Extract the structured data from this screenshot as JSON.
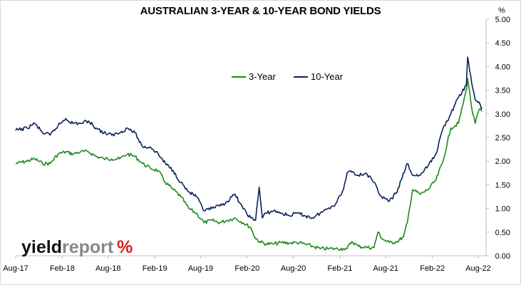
{
  "chart_data": {
    "type": "line",
    "title": "AUSTRALIAN 3-YEAR & 10-YEAR BOND YIELDS",
    "ylabel": "%",
    "ylim": [
      0,
      5
    ],
    "y_ticks": [
      "0.00",
      "0.50",
      "1.00",
      "1.50",
      "2.00",
      "2.50",
      "3.00",
      "3.50",
      "4.00",
      "4.50",
      "5.00"
    ],
    "xlim": [
      "2017-08-01",
      "2022-09-01"
    ],
    "x_ticks": [
      {
        "label": "Aug-17",
        "date": "2017-08-01"
      },
      {
        "label": "Feb-18",
        "date": "2018-02-01"
      },
      {
        "label": "Aug-18",
        "date": "2018-08-01"
      },
      {
        "label": "Feb-19",
        "date": "2019-02-01"
      },
      {
        "label": "Aug-19",
        "date": "2019-08-01"
      },
      {
        "label": "Feb-20",
        "date": "2020-02-01"
      },
      {
        "label": "Aug-20",
        "date": "2020-08-01"
      },
      {
        "label": "Feb-21",
        "date": "2021-02-01"
      },
      {
        "label": "Aug-21",
        "date": "2021-08-01"
      },
      {
        "label": "Feb-22",
        "date": "2022-02-01"
      },
      {
        "label": "Aug-22",
        "date": "2022-08-01"
      }
    ],
    "y_axis_side": "right",
    "grid": false,
    "legend": "center-top",
    "series": [
      {
        "name": "3-Year",
        "color": "#1a8a1a",
        "points": [
          [
            "2017-08-01",
            1.95
          ],
          [
            "2017-09-15",
            2.0
          ],
          [
            "2017-10-15",
            2.05
          ],
          [
            "2017-11-15",
            1.95
          ],
          [
            "2017-12-15",
            1.95
          ],
          [
            "2018-01-15",
            2.15
          ],
          [
            "2018-02-15",
            2.2
          ],
          [
            "2018-03-15",
            2.15
          ],
          [
            "2018-04-15",
            2.2
          ],
          [
            "2018-05-15",
            2.2
          ],
          [
            "2018-06-15",
            2.1
          ],
          [
            "2018-07-15",
            2.05
          ],
          [
            "2018-08-15",
            2.05
          ],
          [
            "2018-09-15",
            2.05
          ],
          [
            "2018-10-15",
            2.15
          ],
          [
            "2018-11-15",
            2.1
          ],
          [
            "2018-12-15",
            1.95
          ],
          [
            "2019-01-15",
            1.85
          ],
          [
            "2019-02-15",
            1.8
          ],
          [
            "2019-03-15",
            1.55
          ],
          [
            "2019-04-15",
            1.4
          ],
          [
            "2019-05-15",
            1.25
          ],
          [
            "2019-06-15",
            1.0
          ],
          [
            "2019-07-15",
            0.9
          ],
          [
            "2019-08-15",
            0.7
          ],
          [
            "2019-09-15",
            0.75
          ],
          [
            "2019-10-15",
            0.7
          ],
          [
            "2019-11-15",
            0.75
          ],
          [
            "2019-12-15",
            0.8
          ],
          [
            "2020-01-15",
            0.7
          ],
          [
            "2020-02-15",
            0.6
          ],
          [
            "2020-03-01",
            0.4
          ],
          [
            "2020-03-20",
            0.3
          ],
          [
            "2020-04-15",
            0.25
          ],
          [
            "2020-05-15",
            0.25
          ],
          [
            "2020-06-15",
            0.28
          ],
          [
            "2020-07-15",
            0.27
          ],
          [
            "2020-08-15",
            0.28
          ],
          [
            "2020-09-15",
            0.25
          ],
          [
            "2020-10-15",
            0.2
          ],
          [
            "2020-11-15",
            0.15
          ],
          [
            "2020-12-15",
            0.15
          ],
          [
            "2021-01-15",
            0.15
          ],
          [
            "2021-02-15",
            0.15
          ],
          [
            "2021-03-01",
            0.15
          ],
          [
            "2021-03-20",
            0.3
          ],
          [
            "2021-04-15",
            0.2
          ],
          [
            "2021-05-15",
            0.18
          ],
          [
            "2021-06-15",
            0.17
          ],
          [
            "2021-07-01",
            0.5
          ],
          [
            "2021-07-20",
            0.35
          ],
          [
            "2021-08-15",
            0.28
          ],
          [
            "2021-09-15",
            0.3
          ],
          [
            "2021-10-10",
            0.4
          ],
          [
            "2021-10-25",
            0.7
          ],
          [
            "2021-11-15",
            1.4
          ],
          [
            "2021-12-15",
            1.3
          ],
          [
            "2022-01-15",
            1.4
          ],
          [
            "2022-02-15",
            1.6
          ],
          [
            "2022-03-15",
            2.0
          ],
          [
            "2022-04-15",
            2.7
          ],
          [
            "2022-05-15",
            2.8
          ],
          [
            "2022-06-15",
            3.5
          ],
          [
            "2022-06-20",
            3.75
          ],
          [
            "2022-07-10",
            3.0
          ],
          [
            "2022-07-20",
            2.8
          ],
          [
            "2022-08-05",
            3.1
          ],
          [
            "2022-08-15",
            3.05
          ]
        ]
      },
      {
        "name": "10-Year",
        "color": "#0b1f5c",
        "points": [
          [
            "2017-08-01",
            2.65
          ],
          [
            "2017-09-15",
            2.7
          ],
          [
            "2017-10-15",
            2.8
          ],
          [
            "2017-11-15",
            2.6
          ],
          [
            "2017-12-15",
            2.55
          ],
          [
            "2018-01-15",
            2.75
          ],
          [
            "2018-02-15",
            2.9
          ],
          [
            "2018-03-15",
            2.8
          ],
          [
            "2018-04-15",
            2.8
          ],
          [
            "2018-05-15",
            2.85
          ],
          [
            "2018-06-15",
            2.7
          ],
          [
            "2018-07-15",
            2.6
          ],
          [
            "2018-08-15",
            2.55
          ],
          [
            "2018-09-15",
            2.6
          ],
          [
            "2018-10-15",
            2.7
          ],
          [
            "2018-11-15",
            2.6
          ],
          [
            "2018-12-15",
            2.3
          ],
          [
            "2019-01-15",
            2.3
          ],
          [
            "2019-02-15",
            2.15
          ],
          [
            "2019-03-15",
            1.95
          ],
          [
            "2019-04-15",
            1.8
          ],
          [
            "2019-05-15",
            1.55
          ],
          [
            "2019-06-15",
            1.35
          ],
          [
            "2019-07-15",
            1.25
          ],
          [
            "2019-08-15",
            0.95
          ],
          [
            "2019-09-15",
            1.0
          ],
          [
            "2019-10-15",
            1.05
          ],
          [
            "2019-11-15",
            1.15
          ],
          [
            "2019-12-15",
            1.3
          ],
          [
            "2020-01-15",
            1.0
          ],
          [
            "2020-02-15",
            0.8
          ],
          [
            "2020-03-05",
            0.75
          ],
          [
            "2020-03-19",
            1.45
          ],
          [
            "2020-04-01",
            0.8
          ],
          [
            "2020-04-15",
            0.9
          ],
          [
            "2020-05-15",
            0.95
          ],
          [
            "2020-06-15",
            0.9
          ],
          [
            "2020-07-15",
            0.85
          ],
          [
            "2020-08-15",
            0.9
          ],
          [
            "2020-09-15",
            0.85
          ],
          [
            "2020-10-15",
            0.8
          ],
          [
            "2020-11-15",
            0.9
          ],
          [
            "2020-12-15",
            1.0
          ],
          [
            "2021-01-15",
            1.1
          ],
          [
            "2021-02-15",
            1.4
          ],
          [
            "2021-03-01",
            1.75
          ],
          [
            "2021-03-15",
            1.8
          ],
          [
            "2021-04-15",
            1.7
          ],
          [
            "2021-05-15",
            1.75
          ],
          [
            "2021-06-15",
            1.55
          ],
          [
            "2021-07-15",
            1.25
          ],
          [
            "2021-08-15",
            1.15
          ],
          [
            "2021-09-15",
            1.35
          ],
          [
            "2021-10-01",
            1.6
          ],
          [
            "2021-10-25",
            1.95
          ],
          [
            "2021-11-15",
            1.7
          ],
          [
            "2021-12-15",
            1.7
          ],
          [
            "2022-01-15",
            1.9
          ],
          [
            "2022-02-15",
            2.15
          ],
          [
            "2022-03-15",
            2.7
          ],
          [
            "2022-04-15",
            3.0
          ],
          [
            "2022-05-15",
            3.35
          ],
          [
            "2022-06-15",
            3.6
          ],
          [
            "2022-06-20",
            4.2
          ],
          [
            "2022-07-10",
            3.55
          ],
          [
            "2022-07-20",
            3.3
          ],
          [
            "2022-08-05",
            3.25
          ],
          [
            "2022-08-15",
            3.1
          ]
        ]
      }
    ]
  },
  "logo": {
    "part1": "yield",
    "part2": "report",
    "symbol": "%",
    "color_dark": "#111111",
    "color_grey": "#888888",
    "color_red": "#e02020"
  }
}
